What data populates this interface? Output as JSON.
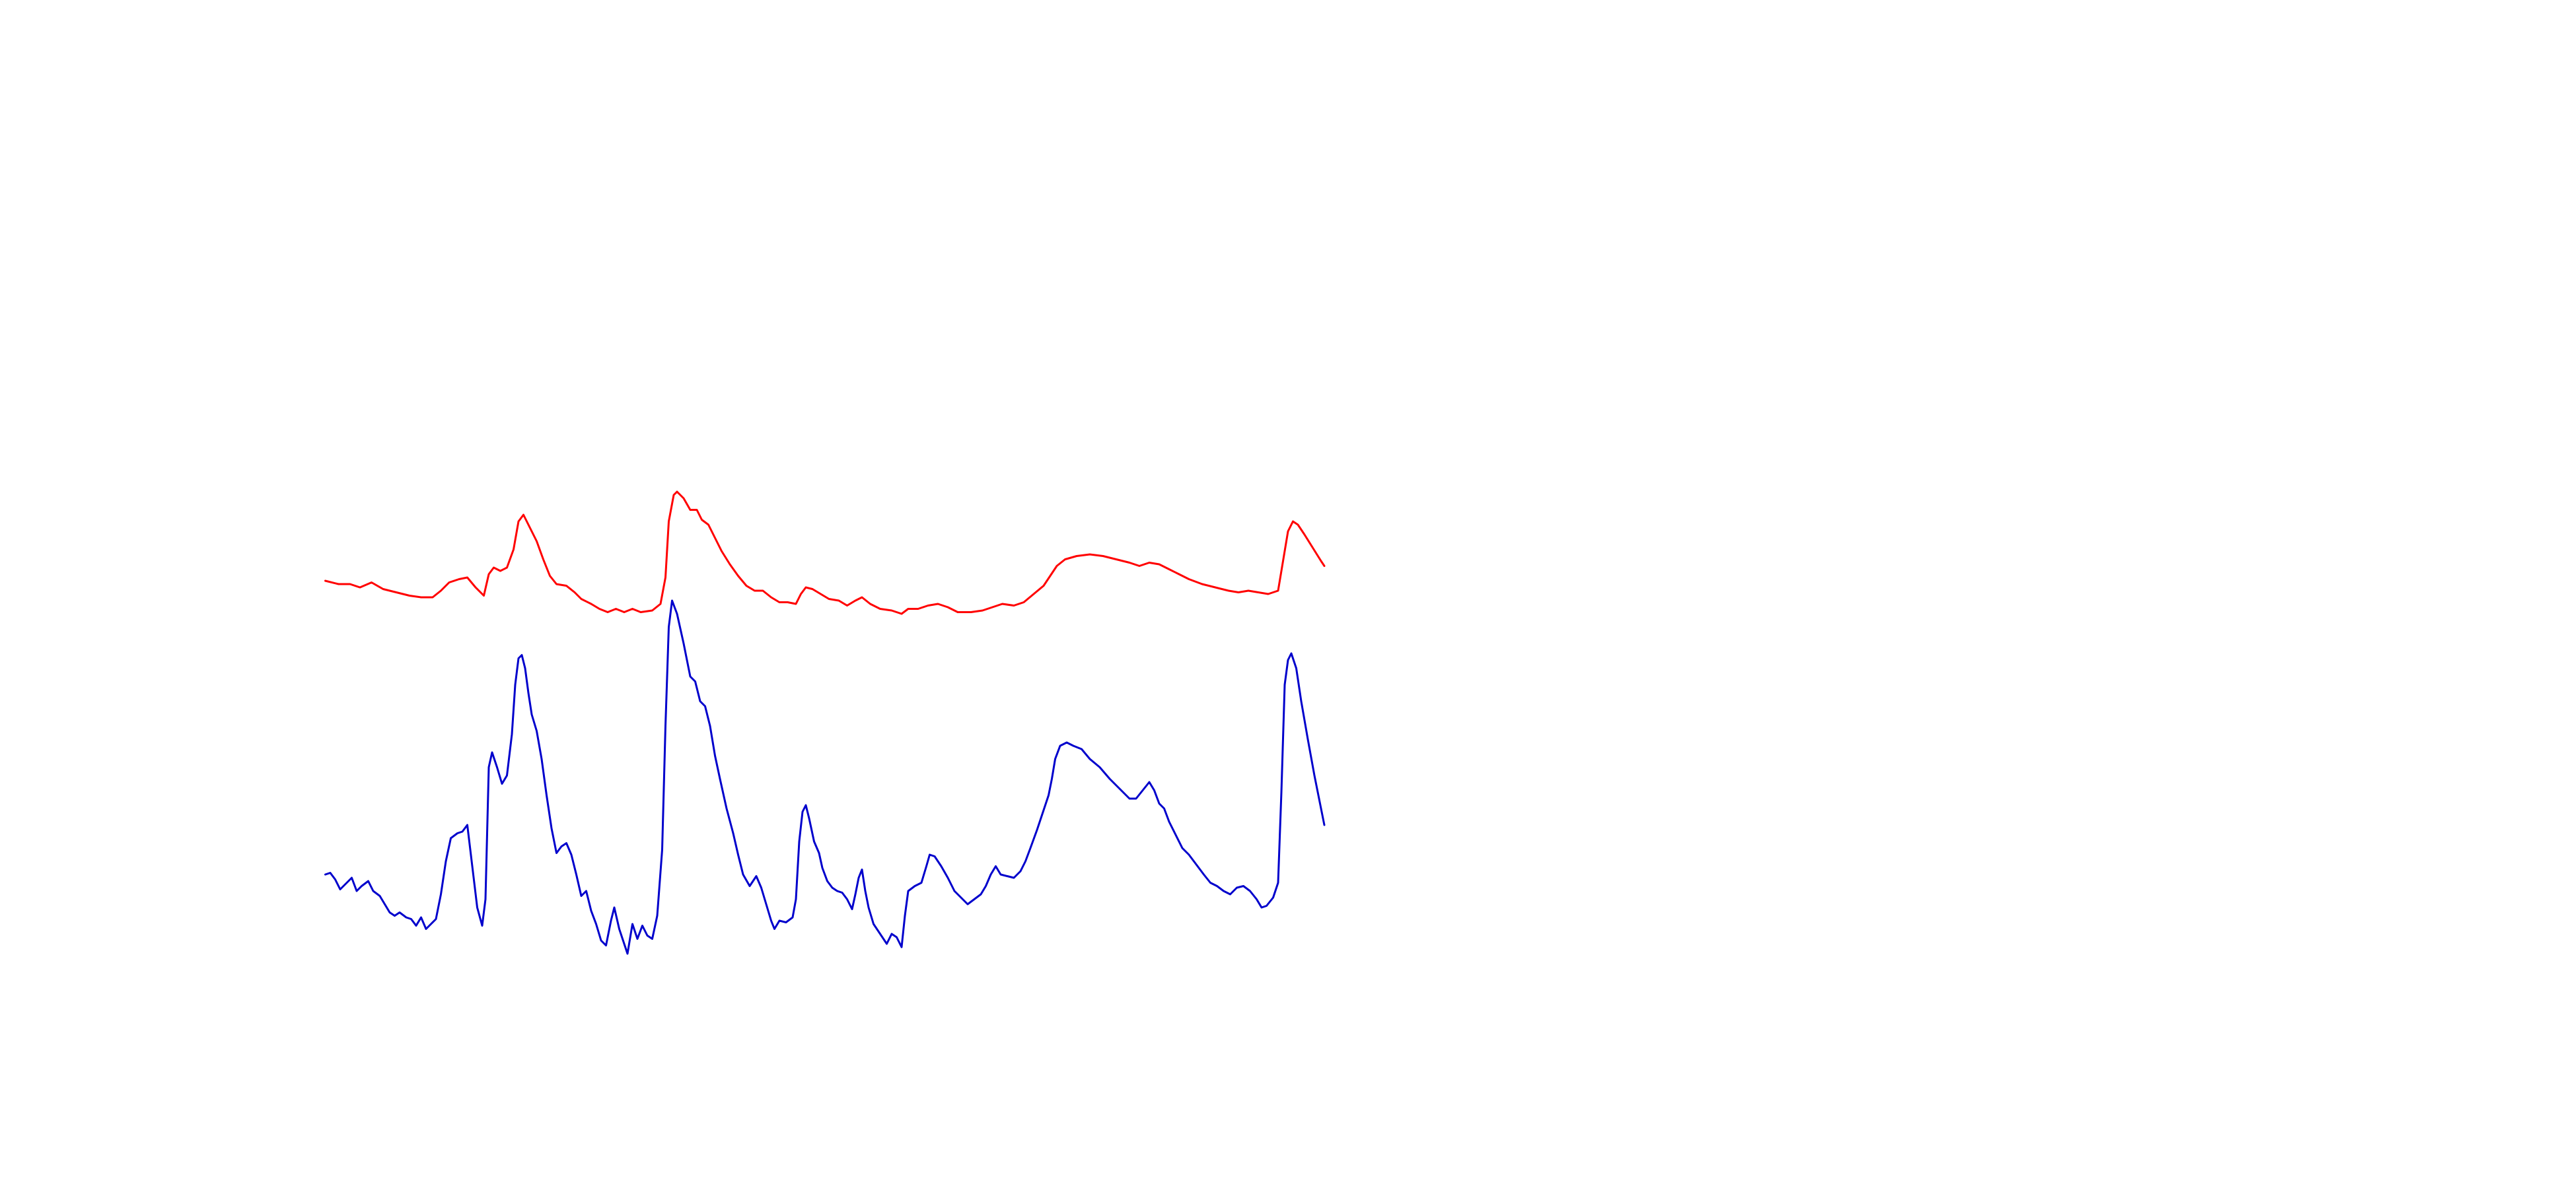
{
  "chart_data": {
    "type": "line",
    "xlim": [
      0,
      1560
    ],
    "ylim": [
      0,
      720
    ],
    "series": [
      {
        "color": "#ff0000",
        "x": [
          197,
          205,
          212,
          218,
          225,
          232,
          240,
          248,
          255,
          262,
          267,
          272,
          278,
          283,
          288,
          293,
          296,
          299,
          303,
          307,
          311,
          314,
          317,
          321,
          325,
          329,
          333,
          337,
          343,
          348,
          352,
          358,
          363,
          368,
          373,
          378,
          383,
          388,
          395,
          400,
          403,
          405,
          408,
          410,
          414,
          418,
          422,
          425,
          429,
          433,
          437,
          442,
          447,
          452,
          457,
          462,
          467,
          472,
          477,
          482,
          485,
          488,
          492,
          497,
          502,
          508,
          513,
          518,
          522,
          527,
          533,
          540,
          546,
          550,
          556,
          562,
          568,
          574,
          580,
          588,
          595,
          601,
          607,
          614,
          620,
          626,
          632,
          636,
          640,
          645,
          652,
          660,
          668,
          676,
          684,
          690,
          696,
          702,
          708,
          714,
          720,
          728,
          736,
          744,
          750,
          756,
          762,
          768,
          774,
          777,
          780,
          783,
          786,
          790,
          795,
          800,
          802
        ],
        "values": [
          368,
          366,
          366,
          364,
          367,
          363,
          361,
          359,
          358,
          358,
          362,
          367,
          369,
          370,
          364,
          359,
          372,
          376,
          374,
          376,
          387,
          404,
          408,
          400,
          392,
          381,
          371,
          366,
          365,
          361,
          357,
          354,
          351,
          349,
          351,
          349,
          351,
          349,
          350,
          354,
          370,
          404,
          420,
          422,
          418,
          411,
          411,
          405,
          402,
          394,
          386,
          378,
          371,
          365,
          362,
          362,
          358,
          355,
          355,
          354,
          360,
          364,
          363,
          360,
          357,
          356,
          353,
          356,
          358,
          354,
          351,
          350,
          348,
          351,
          351,
          353,
          354,
          352,
          349,
          349,
          350,
          352,
          354,
          353,
          355,
          360,
          365,
          371,
          377,
          381,
          383,
          384,
          383,
          381,
          379,
          377,
          379,
          378,
          375,
          372,
          369,
          366,
          364,
          362,
          361,
          362,
          361,
          360,
          362,
          380,
          398,
          404,
          402,
          396,
          388,
          380,
          377
        ]
      },
      {
        "color": "#0000cc",
        "x": [
          197,
          200,
          203,
          206,
          210,
          213,
          216,
          219,
          223,
          226,
          230,
          233,
          236,
          239,
          242,
          246,
          249,
          252,
          255,
          258,
          261,
          264,
          267,
          270,
          273,
          277,
          280,
          283,
          286,
          289,
          292,
          294,
          296,
          298,
          301,
          304,
          307,
          310,
          312,
          314,
          316,
          318,
          320,
          322,
          325,
          328,
          331,
          334,
          337,
          340,
          343,
          346,
          349,
          352,
          355,
          358,
          361,
          364,
          367,
          370,
          372,
          375,
          378,
          380,
          383,
          386,
          389,
          392,
          395,
          398,
          401,
          403,
          405,
          407,
          410,
          414,
          418,
          421,
          424,
          427,
          430,
          433,
          436,
          440,
          444,
          447,
          450,
          454,
          458,
          461,
          464,
          467,
          469,
          472,
          476,
          480,
          482,
          484,
          486,
          488,
          490,
          493,
          496,
          498,
          501,
          504,
          507,
          510,
          513,
          516,
          518,
          520,
          522,
          524,
          526,
          529,
          533,
          537,
          540,
          543,
          546,
          548,
          550,
          554,
          558,
          561,
          563,
          566,
          570,
          574,
          578,
          582,
          586,
          590,
          594,
          597,
          600,
          603,
          606,
          610,
          614,
          618,
          621,
          624,
          628,
          632,
          635,
          637,
          639,
          642,
          646,
          650,
          655,
          660,
          666,
          672,
          678,
          684,
          688,
          692,
          696,
          699,
          702,
          705,
          708,
          712,
          716,
          720,
          723,
          726,
          729,
          733,
          737,
          741,
          745,
          749,
          753,
          757,
          761,
          764,
          767,
          771,
          774,
          776,
          778,
          780,
          782,
          785,
          788,
          792,
          796,
          800,
          802
        ],
        "values": [
          190,
          191,
          187,
          181,
          185,
          188,
          180,
          183,
          186,
          180,
          177,
          172,
          167,
          165,
          167,
          164,
          163,
          159,
          164,
          157,
          160,
          163,
          178,
          198,
          212,
          215,
          216,
          220,
          195,
          170,
          159,
          175,
          255,
          264,
          255,
          245,
          250,
          275,
          305,
          321,
          323,
          315,
          300,
          287,
          277,
          260,
          238,
          218,
          203,
          207,
          209,
          202,
          190,
          177,
          180,
          168,
          160,
          150,
          147,
          162,
          170,
          157,
          148,
          142,
          160,
          151,
          159,
          153,
          151,
          165,
          205,
          280,
          340,
          356,
          348,
          330,
          310,
          307,
          295,
          292,
          280,
          262,
          248,
          230,
          215,
          202,
          190,
          183,
          189,
          182,
          172,
          162,
          157,
          162,
          161,
          164,
          175,
          210,
          228,
          232,
          224,
          210,
          203,
          194,
          186,
          182,
          180,
          179,
          175,
          169,
          178,
          188,
          193,
          180,
          170,
          160,
          154,
          148,
          154,
          152,
          146,
          165,
          180,
          183,
          185,
          195,
          202,
          201,
          195,
          188,
          180,
          176,
          172,
          175,
          178,
          183,
          190,
          195,
          190,
          189,
          188,
          192,
          198,
          206,
          217,
          229,
          238,
          248,
          260,
          268,
          270,
          268,
          266,
          260,
          255,
          248,
          242,
          236,
          236,
          241,
          246,
          241,
          233,
          230,
          222,
          214,
          206,
          202,
          198,
          194,
          190,
          185,
          183,
          180,
          178,
          182,
          183,
          180,
          175,
          170,
          171,
          176,
          185,
          240,
          305,
          320,
          324,
          315,
          295,
          272,
          250,
          230,
          220
        ]
      }
    ]
  }
}
